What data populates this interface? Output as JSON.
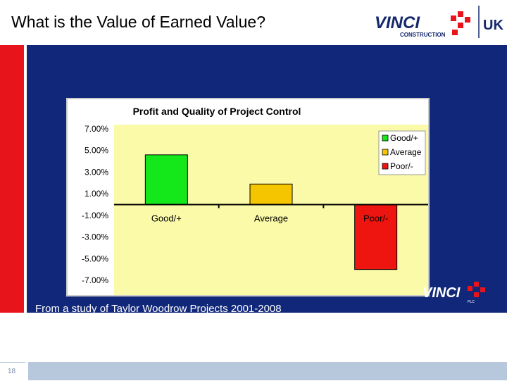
{
  "slide": {
    "title": "What is the Value of Earned Value?",
    "caption": "From a study of Taylor Woodrow Projects 2001-2008",
    "page_number": "18"
  },
  "logo": {
    "brand": "VINCI",
    "sub": "CONSTRUCTION",
    "region": "UK",
    "watermark": "VINCI",
    "watermark_sub": "PLC"
  },
  "colors": {
    "panel": "#11287a",
    "accent_red": "#e8141c",
    "plot_bg": "#fbfaa8"
  },
  "chart_data": {
    "type": "bar",
    "title": "Profit and Quality of Project Control",
    "categories": [
      "Good/+",
      "Average",
      "Poor/-"
    ],
    "values": [
      4.6,
      1.9,
      -6.0
    ],
    "colors": [
      "#15e81a",
      "#f5c500",
      "#ee1510"
    ],
    "yticks": [
      "7.00%",
      "5.00%",
      "3.00%",
      "1.00%",
      "-1.00%",
      "-3.00%",
      "-5.00%",
      "-7.00%"
    ],
    "ylim": [
      -7,
      7
    ],
    "legend": [
      "Good/+",
      "Average",
      "Poor/-"
    ],
    "legend_position": "top-right",
    "grid": false
  }
}
